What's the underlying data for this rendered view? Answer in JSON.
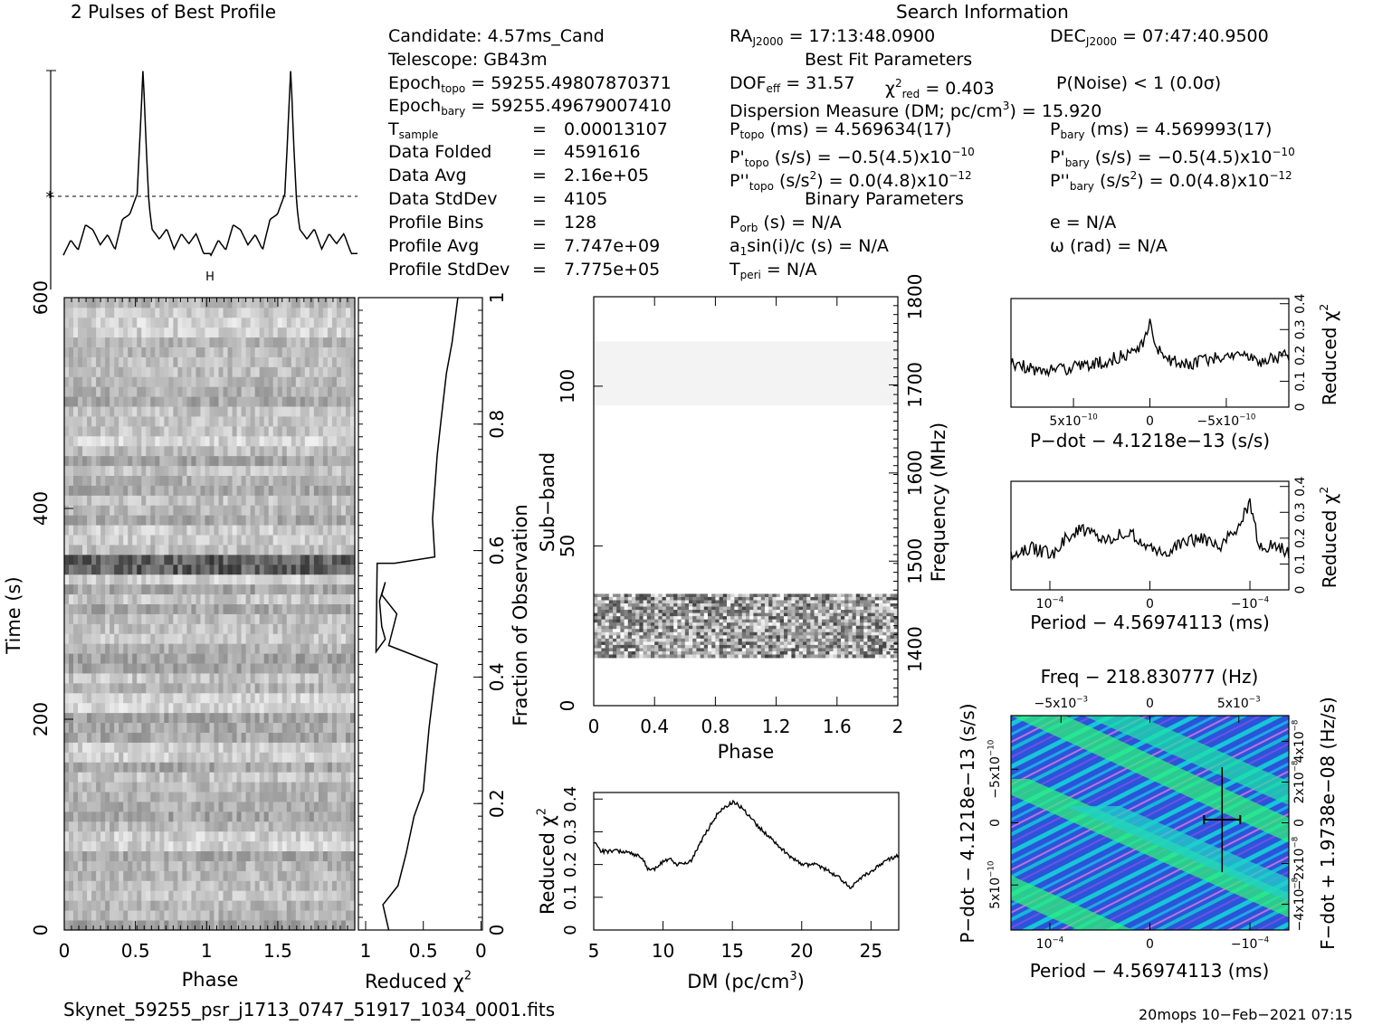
{
  "header": {
    "profile_title": "2 Pulses of Best Profile",
    "search_title": "Search Information",
    "best_fit_title": "Best Fit Parameters",
    "binary_title": "Binary Parameters"
  },
  "info": {
    "candidate": "Candidate:  4.57ms_Cand",
    "telescope": "Telescope:  GB43m",
    "epoch_topo_label": "Epoch",
    "epoch_topo_sub": "topo",
    "epoch_topo_value": "= 59255.49807870371",
    "epoch_bary_label": "Epoch",
    "epoch_bary_sub": "bary",
    "epoch_bary_value": "= 59255.49679007410",
    "t_sample_label": "T",
    "t_sample_sub": "sample",
    "t_sample_eq": "=",
    "t_sample_value": "0.00013107",
    "data_folded_label": "Data Folded",
    "data_folded_eq": "=",
    "data_folded_value": "4591616",
    "data_avg_label": "Data Avg",
    "data_avg_eq": "=",
    "data_avg_value": "2.16e+05",
    "data_std_label": "Data StdDev",
    "data_std_eq": "=",
    "data_std_value": "4105",
    "prof_bins_label": "Profile Bins",
    "prof_bins_eq": "=",
    "prof_bins_value": "128",
    "prof_avg_label": "Profile Avg",
    "prof_avg_eq": "=",
    "prof_avg_value": "7.747e+09",
    "prof_std_label": "Profile StdDev",
    "prof_std_eq": "=",
    "prof_std_value": "7.775e+05"
  },
  "search": {
    "ra_label": "RA",
    "ra_sub": "J2000",
    "ra_value": "= 17:13:48.0900",
    "dec_label": "DEC",
    "dec_sub": "J2000",
    "dec_value": "= 07:47:40.9500",
    "dof_label": "DOF",
    "dof_sub": "eff",
    "dof_value": "= 31.57",
    "chi_label": "χ",
    "chi_sup": "2",
    "chi_sub": "red",
    "chi_value": "= 0.403",
    "pnoise": "P(Noise) < 1   (0.0σ)",
    "dm_line_a": "Dispersion Measure (DM; pc/cm",
    "dm_line_sup": "3",
    "dm_line_b": ") = 15.920",
    "ptopo_label": "P",
    "ptopo_sub": "topo",
    "ptopo_value": " (ms) =  4.569634(17)",
    "pbary_label": "P",
    "pbary_sub": "bary",
    "pbary_value": " (ms) =  4.569993(17)",
    "pdtopo_label": "P'",
    "pdtopo_sub": "topo",
    "pdtopo_value": " (s/s) = −0.5(4.5)x10",
    "pdtopo_exp": "−10",
    "pdbary_label": "P'",
    "pdbary_sub": "bary",
    "pdbary_value": " (s/s) = −0.5(4.5)x10",
    "pdbary_exp": "−10",
    "pddtopo_label": "P''",
    "pddtopo_sub": "topo",
    "pddtopo_value": " (s/s",
    "pddtopo_sup": "2",
    "pddtopo_value2": ") = 0.0(4.8)x10",
    "pddtopo_exp": "−12",
    "pddbary_label": "P''",
    "pddbary_sub": "bary",
    "pddbary_value": " (s/s",
    "pddbary_sup": "2",
    "pddbary_value2": ") = 0.0(4.8)x10",
    "pddbary_exp": "−12",
    "porb_label": "P",
    "porb_sub": "orb",
    "porb_value": " (s) = N/A",
    "ecc": "e = N/A",
    "a1_label": "a",
    "a1_sub": "1",
    "a1_value": "sin(i)/c (s) = N/A",
    "omega": "ω (rad) = N/A",
    "tperi_label": "T",
    "tperi_sub": "peri",
    "tperi_value": " = N/A"
  },
  "footer": {
    "filename": "Skynet_59255_psr_j1713_0747_51917_1034_0001.fits",
    "stamp": "20mops 10−Feb−2021 07:15"
  },
  "colors": {
    "greyscale_dark": "#1a1a1a",
    "greyscale_light": "#f4f4f4",
    "ppdot_blue": "#2a55d8",
    "ppdot_cyan": "#17c6d8",
    "ppdot_green": "#2ef07a",
    "ppdot_magenta": "#d070e0"
  },
  "chart_data": [
    {
      "id": "profile",
      "type": "line",
      "title": "2 Pulses of Best Profile",
      "xlabel": "",
      "ylabel": "",
      "xlim": [
        0,
        2
      ],
      "note": "two pulses of the 128-bin profile; peak near phase 0.53 and 1.53",
      "x_points": [
        0.0,
        0.05,
        0.1,
        0.15,
        0.2,
        0.25,
        0.3,
        0.35,
        0.4,
        0.45,
        0.5,
        0.52,
        0.54,
        0.56,
        0.58,
        0.6,
        0.65,
        0.7,
        0.75,
        0.8,
        0.85,
        0.9,
        0.95,
        1.0
      ],
      "y_points": [
        0.1,
        0.25,
        0.15,
        0.4,
        0.35,
        0.2,
        0.3,
        0.15,
        0.45,
        0.5,
        0.7,
        1.3,
        1.95,
        1.2,
        0.6,
        0.35,
        0.25,
        0.35,
        0.15,
        0.3,
        0.2,
        0.3,
        0.1,
        0.1
      ],
      "mean_marker": "*"
    },
    {
      "id": "time_phase",
      "type": "heatmap",
      "xlabel": "Phase",
      "ylabel": "Time (s)",
      "x_ticks": [
        "0",
        "0.5",
        "1",
        "1.5"
      ],
      "x_tick_values": [
        0,
        0.5,
        1,
        1.5
      ],
      "xlim": [
        0,
        2
      ],
      "y_ticks": [
        "0",
        "200",
        "400",
        "600"
      ],
      "y_tick_values": [
        0,
        200,
        400,
        600
      ],
      "ylim": [
        0,
        600
      ],
      "dark_row_time_s": 343,
      "marker": "H"
    },
    {
      "id": "reduced_chi_vs_time",
      "type": "line",
      "xlabel": "Reduced χ",
      "xlabel_sup": "2",
      "ylabel": "Fraction of Observation",
      "x_ticks": [
        "1",
        "0.5",
        "0"
      ],
      "x_tick_values": [
        1,
        0.5,
        0
      ],
      "y_ticks": [
        "0",
        "0.2",
        "0.4",
        "0.6",
        "0.8",
        "1"
      ],
      "y_tick_values": [
        0,
        0.2,
        0.4,
        0.6,
        0.8,
        1
      ],
      "chi": [
        0.8,
        0.85,
        0.72,
        0.65,
        0.58,
        0.5,
        0.45,
        0.41,
        0.38,
        0.8,
        0.73,
        0.86,
        0.83,
        0.88,
        0.86,
        0.83,
        0.91,
        0.9,
        0.75,
        0.4,
        0.42,
        0.38,
        0.35,
        0.3,
        0.25,
        0.2
      ],
      "frac": [
        0.0,
        0.04,
        0.07,
        0.12,
        0.18,
        0.22,
        0.32,
        0.38,
        0.42,
        0.45,
        0.5,
        0.53,
        0.55,
        0.52,
        0.48,
        0.46,
        0.44,
        0.58,
        0.58,
        0.59,
        0.65,
        0.75,
        0.8,
        0.88,
        0.93,
        1.0
      ]
    },
    {
      "id": "subband_phase",
      "type": "heatmap",
      "xlabel": "Phase",
      "ylabel": "Sub−band",
      "ylabel2": "Frequency (MHz)",
      "x_ticks": [
        "0",
        "0.4",
        "0.8",
        "1.2",
        "1.6",
        "2"
      ],
      "x_tick_values": [
        0,
        0.4,
        0.8,
        1.2,
        1.6,
        2
      ],
      "y_ticks": [
        "0",
        "50",
        "100"
      ],
      "y_tick_values": [
        0,
        50,
        100
      ],
      "ylim": [
        0,
        128
      ],
      "freq_ticks": [
        "1400",
        "1500",
        "1600",
        "1700",
        "1800"
      ],
      "freq_tick_values": [
        1400,
        1500,
        1600,
        1700,
        1800
      ],
      "freq_lim": [
        1336,
        1800
      ],
      "active_band": [
        15,
        35
      ],
      "faint_band": [
        94,
        114
      ]
    },
    {
      "id": "chi_vs_dm",
      "type": "line",
      "xlabel": "DM (pc/cm",
      "xlabel_sup": "3",
      "xlabel_end": ")",
      "ylabel": "Reduced χ",
      "ylabel_sup": "2",
      "x_ticks": [
        "5",
        "10",
        "15",
        "20",
        "25"
      ],
      "x_tick_values": [
        5,
        10,
        15,
        20,
        25
      ],
      "xlim": [
        5,
        27
      ],
      "y_ticks": [
        "0",
        "0.1",
        "0.2",
        "0.3",
        "0.4"
      ],
      "y_tick_values": [
        0,
        0.1,
        0.2,
        0.3,
        0.4
      ],
      "ylim": [
        0,
        0.42
      ],
      "dm": [
        5,
        5.5,
        6,
        7,
        8,
        8.5,
        9,
        9.5,
        10,
        10.5,
        11,
        12,
        13,
        14,
        15,
        15.5,
        16,
        17,
        18,
        19,
        20,
        21,
        22,
        23,
        23.5,
        24,
        25,
        26,
        27
      ],
      "chi": [
        0.27,
        0.24,
        0.24,
        0.24,
        0.23,
        0.22,
        0.18,
        0.19,
        0.21,
        0.22,
        0.2,
        0.21,
        0.29,
        0.36,
        0.39,
        0.38,
        0.36,
        0.31,
        0.27,
        0.23,
        0.2,
        0.2,
        0.18,
        0.15,
        0.13,
        0.15,
        0.18,
        0.21,
        0.23
      ]
    },
    {
      "id": "chi_vs_pdot",
      "type": "line",
      "xlabel": "P−dot − 4.1218e−13 (s/s)",
      "ylabel": "Reduced χ",
      "ylabel_sup": "2",
      "x_ticks": [
        "5x10",
        "0",
        "−5x10"
      ],
      "x_tick_exp": "−10",
      "x_tick_values": [
        5e-10,
        0,
        -5e-10
      ],
      "xlim": [
        9.5e-10,
        -9.5e-10
      ],
      "y_ticks": [
        "0",
        "0.1",
        "0.2",
        "0.3",
        "0.4"
      ],
      "y_tick_values": [
        0,
        0.1,
        0.2,
        0.3,
        0.4
      ],
      "ylim": [
        0,
        0.42
      ],
      "pdot_rel": [
        -1,
        -0.8,
        -0.6,
        -0.45,
        -0.3,
        -0.15,
        -0.05,
        0.0,
        0.05,
        0.15,
        0.3,
        0.45,
        0.6,
        0.8,
        1.0
      ],
      "chi": [
        0.17,
        0.14,
        0.15,
        0.16,
        0.18,
        0.21,
        0.24,
        0.34,
        0.22,
        0.18,
        0.17,
        0.19,
        0.2,
        0.18,
        0.2
      ]
    },
    {
      "id": "chi_vs_period",
      "type": "line",
      "xlabel": "Period − 4.56974113 (ms)",
      "ylabel": "Reduced χ",
      "ylabel_sup": "2",
      "x_ticks": [
        "10",
        "0",
        "−10"
      ],
      "x_tick_exp_a": "−4",
      "x_tick_exp_b": "−4",
      "x_tick_values": [
        0.0001,
        0,
        -0.0001
      ],
      "ylim": [
        0,
        0.42
      ],
      "y_ticks": [
        "0",
        "0.1",
        "0.2",
        "0.3",
        "0.4"
      ],
      "y_tick_values": [
        0,
        0.1,
        0.2,
        0.3,
        0.4
      ],
      "period_rel": [
        -1,
        -0.85,
        -0.7,
        -0.6,
        -0.5,
        -0.35,
        -0.2,
        -0.1,
        0.0,
        0.1,
        0.2,
        0.35,
        0.5,
        0.6,
        0.68,
        0.72,
        0.75,
        0.8,
        0.9,
        1.0
      ],
      "chi": [
        0.14,
        0.16,
        0.14,
        0.2,
        0.24,
        0.19,
        0.22,
        0.21,
        0.16,
        0.14,
        0.17,
        0.2,
        0.17,
        0.22,
        0.3,
        0.34,
        0.25,
        0.16,
        0.18,
        0.14
      ]
    },
    {
      "id": "p_pdot_plane",
      "type": "heatmap",
      "title": "Freq − 218.830777 (Hz)",
      "xlabel": "Period − 4.56974113 (ms)",
      "ylabel": "P−dot − 4.1218e−13 (s/s)",
      "ylabel2": "F−dot + 1.9738e−08 (Hz/s)",
      "top_ticks": [
        "−5x10",
        "0",
        "5x10"
      ],
      "top_tick_exp": "−3",
      "bottom_ticks": [
        "10",
        "0",
        "−10"
      ],
      "bottom_tick_exp": "−4",
      "left_ticks": [
        "−5x10",
        "0",
        "5x10"
      ],
      "left_tick_exp": "−10",
      "right_ticks": [
        "4x10",
        "2x10",
        "0",
        "−2x10",
        "−4x10"
      ],
      "right_tick_exp": "−8",
      "best_fit_period_rel": 0.76,
      "best_fit_pdot_rel": 0.38
    }
  ]
}
